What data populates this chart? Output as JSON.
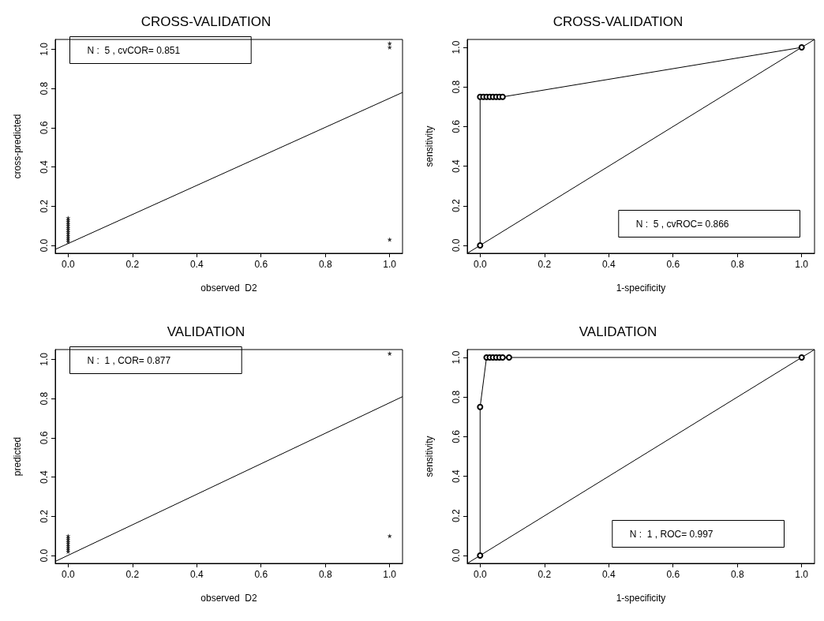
{
  "chart_data": [
    {
      "type": "scatter",
      "title": "CROSS-VALIDATION",
      "xlabel": "observed  D2",
      "ylabel": "cross-predicted",
      "xlim": [
        -0.04,
        1.04
      ],
      "ylim": [
        -0.04,
        1.05
      ],
      "xticks": [
        {
          "value": 0,
          "label": "0.0"
        },
        {
          "value": 0.2,
          "label": "0.2"
        },
        {
          "value": 0.4,
          "label": "0.4"
        },
        {
          "value": 0.6,
          "label": "0.6"
        },
        {
          "value": 0.8,
          "label": "0.8"
        },
        {
          "value": 1,
          "label": "1.0"
        }
      ],
      "yticks": [
        {
          "value": 0,
          "label": "0.0"
        },
        {
          "value": 0.2,
          "label": "0.2"
        },
        {
          "value": 0.4,
          "label": "0.4"
        },
        {
          "value": 0.6,
          "label": "0.6"
        },
        {
          "value": 0.8,
          "label": "0.8"
        },
        {
          "value": 1,
          "label": "1.0"
        }
      ],
      "annotations": [
        "N :  5 , cvCOR= 0.851"
      ],
      "series": [
        {
          "type": "scatter",
          "marker": "star",
          "color": "#000000",
          "x": [
            0,
            0,
            0,
            0,
            0,
            0,
            0,
            0,
            0,
            0,
            0,
            0,
            0,
            1,
            1,
            1
          ],
          "values": [
            0.02,
            0.03,
            0.04,
            0.05,
            0.06,
            0.07,
            0.08,
            0.09,
            0.1,
            0.11,
            0.12,
            0.13,
            0.14,
            1.01,
            1.03,
            0.03
          ]
        },
        {
          "type": "line",
          "marker": "none",
          "line_style": "solid",
          "color": "#000000",
          "x": [
            -0.04,
            1.04
          ],
          "values": [
            -0.02,
            0.78
          ]
        }
      ]
    },
    {
      "type": "scatter",
      "title": "CROSS-VALIDATION",
      "xlabel": "1-specificity",
      "ylabel": "sensitivity",
      "xlim": [
        -0.04,
        1.04
      ],
      "ylim": [
        -0.04,
        1.04
      ],
      "xticks": [
        {
          "value": 0,
          "label": "0.0"
        },
        {
          "value": 0.2,
          "label": "0.2"
        },
        {
          "value": 0.4,
          "label": "0.4"
        },
        {
          "value": 0.6,
          "label": "0.6"
        },
        {
          "value": 0.8,
          "label": "0.8"
        },
        {
          "value": 1,
          "label": "1.0"
        }
      ],
      "yticks": [
        {
          "value": 0,
          "label": "0.0"
        },
        {
          "value": 0.2,
          "label": "0.2"
        },
        {
          "value": 0.4,
          "label": "0.4"
        },
        {
          "value": 0.6,
          "label": "0.6"
        },
        {
          "value": 0.8,
          "label": "0.8"
        },
        {
          "value": 1,
          "label": "1.0"
        }
      ],
      "annotations": [
        "N :  5 , cvROC= 0.866"
      ],
      "series": [
        {
          "type": "line",
          "marker": "circle",
          "line_style": "solid",
          "color": "#000000",
          "x": [
            0,
            0,
            0.01,
            0.02,
            0.03,
            0.04,
            0.05,
            0.06,
            0.07,
            1
          ],
          "values": [
            0,
            0.75,
            0.75,
            0.75,
            0.75,
            0.75,
            0.75,
            0.75,
            0.75,
            1
          ]
        },
        {
          "type": "line",
          "marker": "none",
          "line_style": "solid",
          "color": "#000000",
          "x": [
            -0.04,
            1.04
          ],
          "values": [
            -0.04,
            1.04
          ]
        }
      ]
    },
    {
      "type": "scatter",
      "title": "VALIDATION",
      "xlabel": "observed  D2",
      "ylabel": "predicted",
      "xlim": [
        -0.04,
        1.04
      ],
      "ylim": [
        -0.04,
        1.05
      ],
      "xticks": [
        {
          "value": 0,
          "label": "0.0"
        },
        {
          "value": 0.2,
          "label": "0.2"
        },
        {
          "value": 0.4,
          "label": "0.4"
        },
        {
          "value": 0.6,
          "label": "0.6"
        },
        {
          "value": 0.8,
          "label": "0.8"
        },
        {
          "value": 1,
          "label": "1.0"
        }
      ],
      "yticks": [
        {
          "value": 0,
          "label": "0.0"
        },
        {
          "value": 0.2,
          "label": "0.2"
        },
        {
          "value": 0.4,
          "label": "0.4"
        },
        {
          "value": 0.6,
          "label": "0.6"
        },
        {
          "value": 0.8,
          "label": "0.8"
        },
        {
          "value": 1,
          "label": "1.0"
        }
      ],
      "annotations": [
        "N :  1 , COR= 0.877"
      ],
      "series": [
        {
          "type": "scatter",
          "marker": "star",
          "color": "#000000",
          "x": [
            0,
            0,
            0,
            0,
            0,
            0,
            0,
            0,
            0,
            1,
            1
          ],
          "values": [
            0.02,
            0.03,
            0.04,
            0.05,
            0.06,
            0.07,
            0.08,
            0.09,
            0.1,
            1.03,
            0.1
          ]
        },
        {
          "type": "line",
          "marker": "none",
          "line_style": "solid",
          "color": "#000000",
          "x": [
            -0.04,
            1.04
          ],
          "values": [
            -0.03,
            0.81
          ]
        }
      ]
    },
    {
      "type": "scatter",
      "title": "VALIDATION",
      "xlabel": "1-specificity",
      "ylabel": "sensitivity",
      "xlim": [
        -0.04,
        1.04
      ],
      "ylim": [
        -0.04,
        1.04
      ],
      "xticks": [
        {
          "value": 0,
          "label": "0.0"
        },
        {
          "value": 0.2,
          "label": "0.2"
        },
        {
          "value": 0.4,
          "label": "0.4"
        },
        {
          "value": 0.6,
          "label": "0.6"
        },
        {
          "value": 0.8,
          "label": "0.8"
        },
        {
          "value": 1,
          "label": "1.0"
        }
      ],
      "yticks": [
        {
          "value": 0,
          "label": "0.0"
        },
        {
          "value": 0.2,
          "label": "0.2"
        },
        {
          "value": 0.4,
          "label": "0.4"
        },
        {
          "value": 0.6,
          "label": "0.6"
        },
        {
          "value": 0.8,
          "label": "0.8"
        },
        {
          "value": 1,
          "label": "1.0"
        }
      ],
      "annotations": [
        "N :  1 , ROC= 0.997"
      ],
      "series": [
        {
          "type": "line",
          "marker": "circle",
          "line_style": "solid",
          "color": "#000000",
          "x": [
            0,
            0,
            0.02,
            0.03,
            0.04,
            0.05,
            0.06,
            0.07,
            0.09,
            1
          ],
          "values": [
            0,
            0.75,
            1,
            1,
            1,
            1,
            1,
            1,
            1,
            1
          ]
        },
        {
          "type": "line",
          "marker": "none",
          "line_style": "solid",
          "color": "#000000",
          "x": [
            -0.04,
            1.04
          ],
          "values": [
            -0.04,
            1.04
          ]
        }
      ]
    }
  ]
}
